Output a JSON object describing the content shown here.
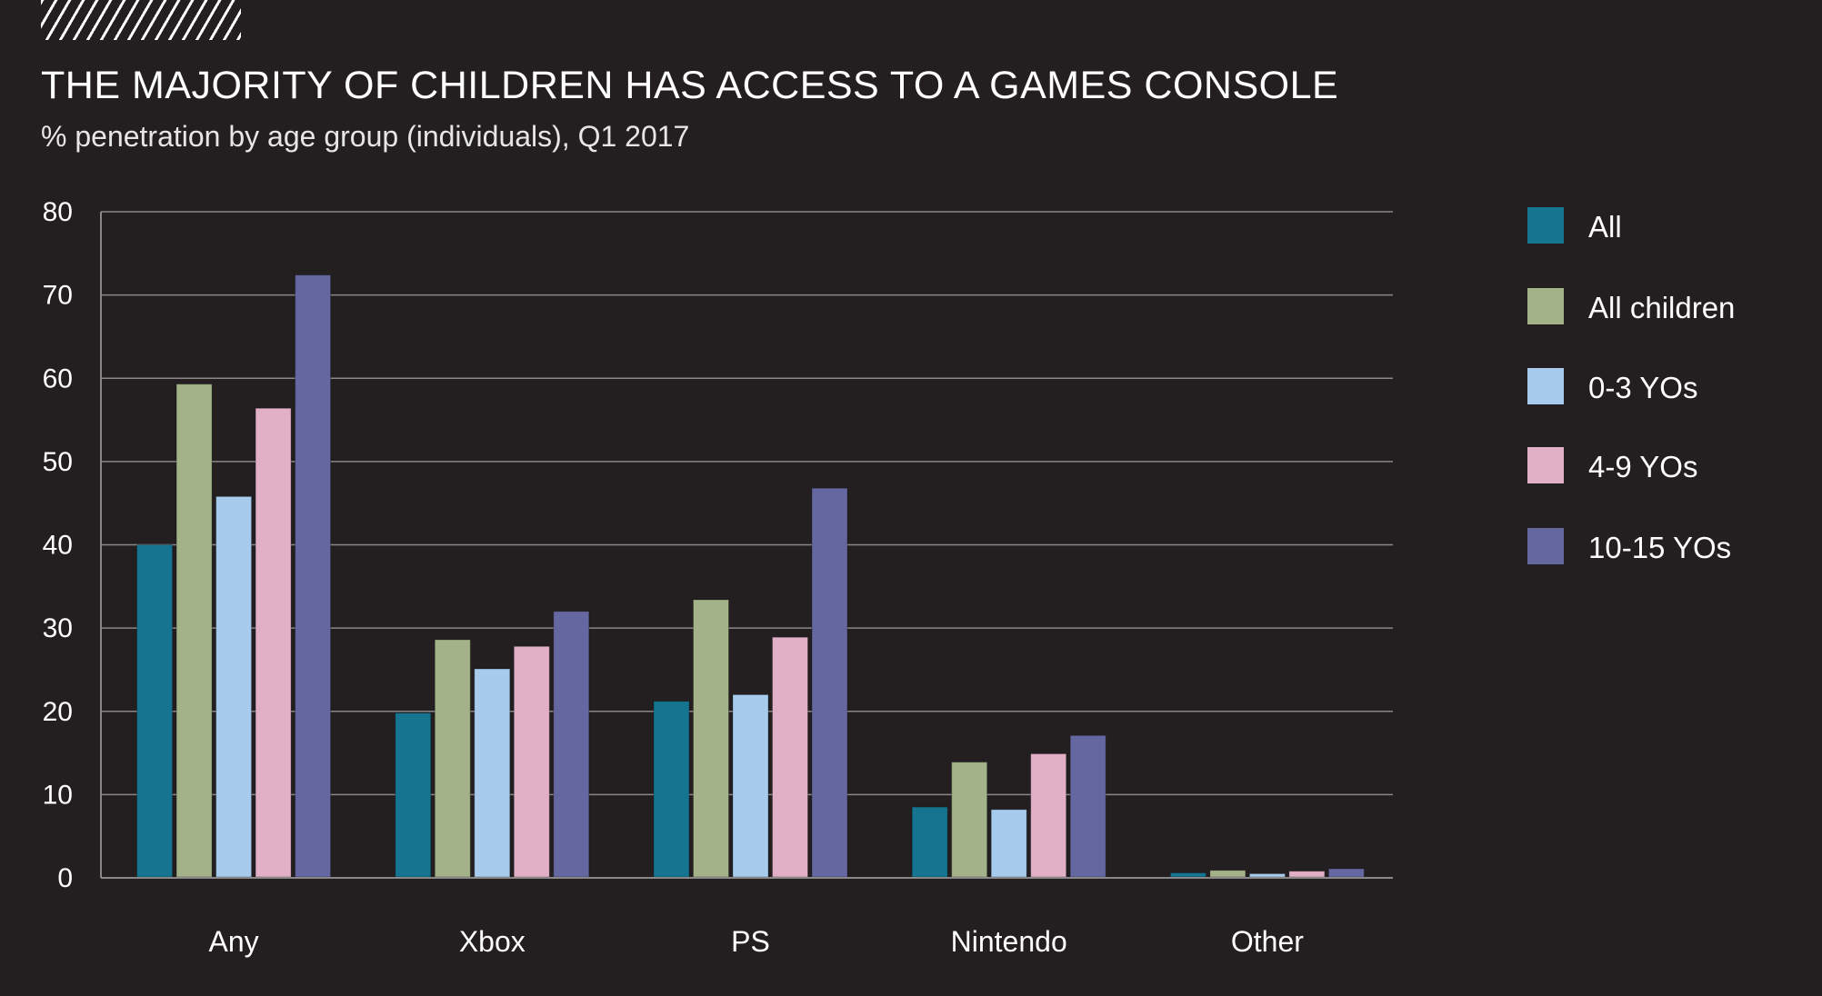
{
  "header": {
    "title": "THE MAJORITY OF CHILDREN HAS ACCESS TO A GAMES CONSOLE",
    "subtitle": "% penetration by age group (individuals), Q1 2017",
    "decoration": "hatched-stripes"
  },
  "chart_data": {
    "type": "bar",
    "title": "THE MAJORITY OF CHILDREN HAS ACCESS TO A GAMES CONSOLE",
    "subtitle": "% penetration by age group (individuals), Q1 2017",
    "xlabel": "",
    "ylabel": "",
    "ylim": [
      0,
      80
    ],
    "yticks": [
      0,
      10,
      20,
      30,
      40,
      50,
      60,
      70,
      80
    ],
    "grid": true,
    "legend_position": "right",
    "categories": [
      "Any",
      "Xbox",
      "PS",
      "Nintendo",
      "Other"
    ],
    "series": [
      {
        "name": "All",
        "color": "#157591",
        "values": [
          40.0,
          19.8,
          21.2,
          8.5,
          0.6
        ]
      },
      {
        "name": "All children",
        "color": "#a3b288",
        "values": [
          59.3,
          28.6,
          33.4,
          13.9,
          0.9
        ]
      },
      {
        "name": "0-3 YOs",
        "color": "#a6cbec",
        "values": [
          45.8,
          25.1,
          22.0,
          8.2,
          0.5
        ]
      },
      {
        "name": "4-9 YOs",
        "color": "#e1b0c7",
        "values": [
          56.4,
          27.8,
          28.9,
          14.9,
          0.8
        ]
      },
      {
        "name": "10-15 YOs",
        "color": "#6567a1",
        "values": [
          72.4,
          32.0,
          46.8,
          17.1,
          1.1
        ]
      }
    ]
  }
}
